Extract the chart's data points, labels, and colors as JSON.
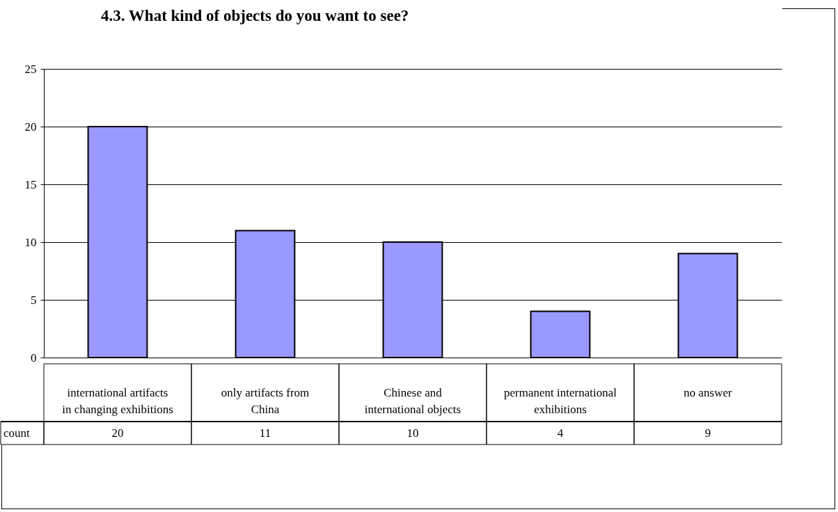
{
  "chart_data": {
    "type": "bar",
    "title": "4.3. What kind of objects do you want to see?",
    "categories": [
      "international artifacts in changing exhibitions",
      "only artifacts from China",
      "Chinese and international objects",
      "permanent international exhibitions",
      "no answer"
    ],
    "series": [
      {
        "name": "count",
        "color": "#9999ff",
        "values": [
          20,
          11,
          10,
          4,
          9
        ]
      }
    ],
    "ylim": [
      0,
      25
    ],
    "yticks": [
      0,
      5,
      10,
      15,
      20,
      25
    ],
    "grid": "y",
    "data_labels": true
  }
}
